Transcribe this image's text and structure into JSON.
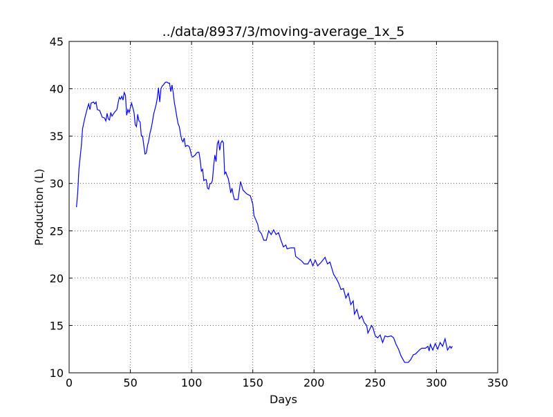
{
  "chart_data": {
    "type": "line",
    "title": "../data/8937/3/moving-average_1x_5",
    "x_label": "Days",
    "y_label": "Production (L)",
    "x": [
      6,
      7,
      8,
      10,
      11,
      13,
      15,
      16,
      17,
      18,
      20,
      21,
      22,
      23,
      25,
      27,
      29,
      30,
      31,
      32,
      33,
      34,
      35,
      37,
      39,
      40,
      41,
      42,
      43,
      44,
      45,
      46,
      47,
      48,
      49,
      50,
      51,
      52,
      53,
      54,
      55,
      56,
      57,
      58,
      59,
      60,
      61,
      62,
      63,
      64,
      65,
      66,
      67,
      68,
      69,
      70,
      71,
      72,
      73,
      74,
      75,
      76,
      77,
      78,
      79,
      80,
      81,
      82,
      83,
      84,
      85,
      86,
      87,
      88,
      89,
      90,
      91,
      92,
      93,
      94,
      95,
      96,
      97,
      98,
      99,
      100,
      101,
      103,
      104,
      105,
      106,
      107,
      108,
      109,
      110,
      111,
      112,
      113,
      114,
      115,
      116,
      117,
      118,
      119,
      120,
      121,
      122,
      123,
      124,
      125,
      126,
      127,
      128,
      129,
      130,
      131,
      132,
      133,
      134,
      135,
      136,
      137,
      138,
      140,
      142,
      145,
      148,
      150,
      151,
      154,
      155,
      157,
      159,
      161,
      163,
      165,
      167,
      169,
      171,
      173,
      175,
      177,
      178,
      181,
      184,
      185,
      187,
      190,
      192,
      195,
      197,
      199,
      201,
      203,
      206,
      209,
      211,
      213,
      216,
      218,
      220,
      222,
      224,
      226,
      228,
      230,
      232,
      233,
      235,
      237,
      239,
      241,
      243,
      244,
      247,
      248,
      250,
      252,
      254,
      256,
      258,
      260,
      263,
      265,
      267,
      269,
      271,
      274,
      277,
      279,
      281,
      283,
      286,
      288,
      291,
      293,
      294,
      295,
      297,
      299,
      301,
      303,
      305,
      307,
      309,
      311,
      312,
      313
    ],
    "series": [
      {
        "name": "moving-average",
        "color": "#0000ff",
        "values": [
          27.5,
          29,
          31.5,
          34,
          35.8,
          37,
          38,
          38.4,
          37.8,
          38.5,
          38.6,
          38.4,
          38.6,
          37.8,
          37.7,
          37,
          36.9,
          36.6,
          37.4,
          36.8,
          36.7,
          37.5,
          37.1,
          37.5,
          37.8,
          38.5,
          39.1,
          38.9,
          39.2,
          38.8,
          39.6,
          39.3,
          37.2,
          37.8,
          37.5,
          38,
          38.5,
          38,
          37.5,
          36.2,
          36,
          37.3,
          36.6,
          36.5,
          35,
          35,
          34,
          33.1,
          33.2,
          34,
          34.5,
          35.3,
          35.8,
          36.5,
          37.3,
          37.8,
          38.3,
          39,
          40.1,
          38.6,
          40,
          40.3,
          40.4,
          40.6,
          40.7,
          40.7,
          40.6,
          40.6,
          39.7,
          40.4,
          39.6,
          38.5,
          37.8,
          37,
          36.3,
          36,
          35.2,
          34.6,
          34.4,
          34.8,
          33.9,
          34,
          34,
          33.9,
          33.5,
          32.9,
          32.8,
          33,
          33.2,
          33.3,
          33.3,
          32.5,
          31.3,
          31.5,
          30.3,
          30.4,
          30.4,
          29.5,
          29.4,
          30,
          30,
          30.3,
          31.8,
          33,
          32.3,
          34.2,
          34.5,
          33.5,
          34.3,
          34.5,
          34.3,
          31,
          31.2,
          30.8,
          30.5,
          29.8,
          29,
          29.5,
          28.8,
          28.3,
          28.3,
          28.3,
          28.3,
          30.2,
          29.3,
          28.9,
          28.7,
          27.8,
          26.6,
          25.7,
          25,
          24.7,
          24,
          24,
          25,
          24.6,
          25.1,
          24.6,
          24.8,
          24,
          23.3,
          23.5,
          23.1,
          23.2,
          23.2,
          22.3,
          22.1,
          21.8,
          21.5,
          21.5,
          22,
          21.3,
          21.9,
          21.3,
          21.7,
          22.2,
          21.5,
          21.7,
          20.4,
          20,
          19.5,
          18.8,
          18.9,
          17.9,
          18.4,
          17.2,
          17.6,
          16.2,
          16.7,
          15.7,
          16,
          15.3,
          15,
          14.2,
          15,
          14.8,
          13.9,
          13.7,
          14,
          13.2,
          13.9,
          13.8,
          13.9,
          13.7,
          13,
          12.5,
          11.8,
          11.1,
          11.1,
          11.4,
          11.9,
          12,
          12.4,
          12.6,
          12.6,
          12.8,
          12.3,
          13,
          12.4,
          13.1,
          12.5,
          13.2,
          12.8,
          13.6,
          12.4,
          12.8,
          12.6,
          12.8
        ]
      }
    ],
    "xlim": [
      0,
      350
    ],
    "xticks": [
      0,
      50,
      100,
      150,
      200,
      250,
      300,
      350
    ],
    "ylim": [
      10,
      45
    ],
    "yticks": [
      10,
      15,
      20,
      25,
      30,
      35,
      40,
      45
    ],
    "grid": true
  }
}
